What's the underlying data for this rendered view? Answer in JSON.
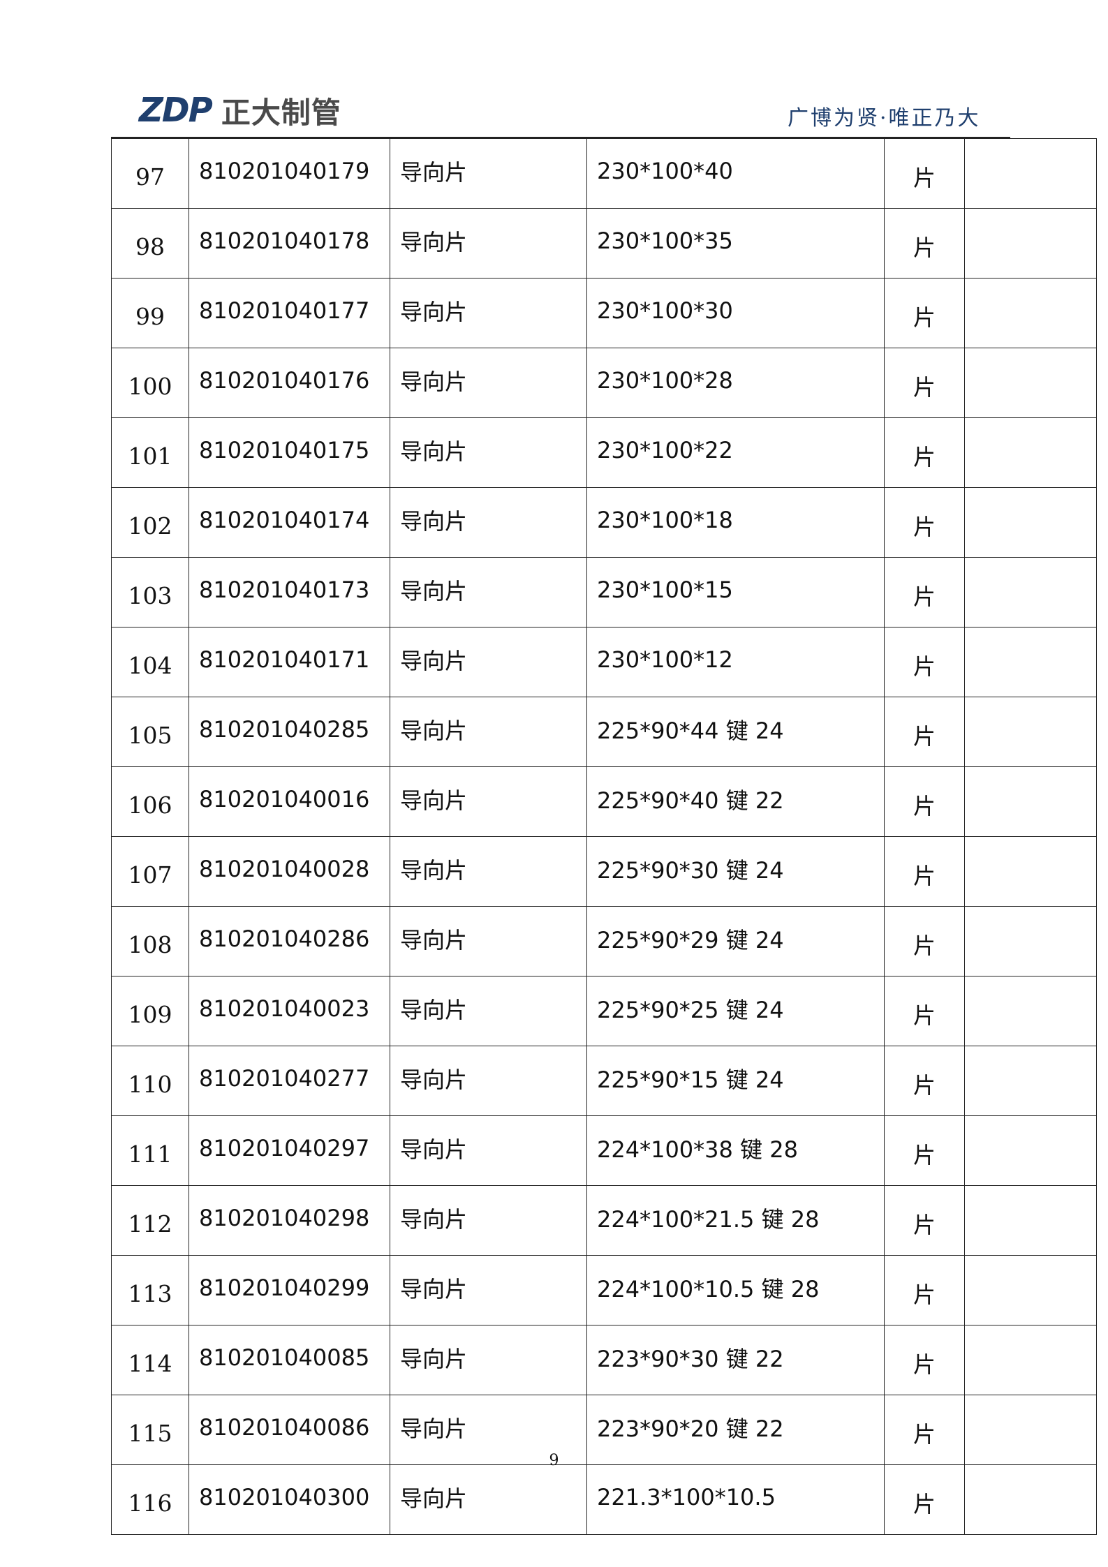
{
  "header": {
    "logo_mark": "ZDP",
    "logo_text": "正大制管",
    "slogan": "广博为贤·唯正乃大",
    "brand_color": "#1f3f6e"
  },
  "rows": [
    {
      "no": "97",
      "code": "810201040179",
      "name": "导向片",
      "spec": "230*100*40",
      "unit": "片",
      "note": ""
    },
    {
      "no": "98",
      "code": "810201040178",
      "name": "导向片",
      "spec": "230*100*35",
      "unit": "片",
      "note": ""
    },
    {
      "no": "99",
      "code": "810201040177",
      "name": "导向片",
      "spec": "230*100*30",
      "unit": "片",
      "note": ""
    },
    {
      "no": "100",
      "code": "810201040176",
      "name": "导向片",
      "spec": "230*100*28",
      "unit": "片",
      "note": ""
    },
    {
      "no": "101",
      "code": "810201040175",
      "name": "导向片",
      "spec": "230*100*22",
      "unit": "片",
      "note": ""
    },
    {
      "no": "102",
      "code": "810201040174",
      "name": "导向片",
      "spec": "230*100*18",
      "unit": "片",
      "note": ""
    },
    {
      "no": "103",
      "code": "810201040173",
      "name": "导向片",
      "spec": "230*100*15",
      "unit": "片",
      "note": ""
    },
    {
      "no": "104",
      "code": "810201040171",
      "name": "导向片",
      "spec": "230*100*12",
      "unit": "片",
      "note": ""
    },
    {
      "no": "105",
      "code": "810201040285",
      "name": "导向片",
      "spec": "225*90*44 键 24",
      "unit": "片",
      "note": ""
    },
    {
      "no": "106",
      "code": "810201040016",
      "name": "导向片",
      "spec": "225*90*40 键 22",
      "unit": "片",
      "note": ""
    },
    {
      "no": "107",
      "code": "810201040028",
      "name": "导向片",
      "spec": "225*90*30 键 24",
      "unit": "片",
      "note": ""
    },
    {
      "no": "108",
      "code": "810201040286",
      "name": "导向片",
      "spec": "225*90*29 键 24",
      "unit": "片",
      "note": ""
    },
    {
      "no": "109",
      "code": "810201040023",
      "name": "导向片",
      "spec": "225*90*25 键 24",
      "unit": "片",
      "note": ""
    },
    {
      "no": "110",
      "code": "810201040277",
      "name": "导向片",
      "spec": "225*90*15 键 24",
      "unit": "片",
      "note": ""
    },
    {
      "no": "111",
      "code": "810201040297",
      "name": "导向片",
      "spec": "224*100*38 键 28",
      "unit": "片",
      "note": ""
    },
    {
      "no": "112",
      "code": "810201040298",
      "name": "导向片",
      "spec": "224*100*21.5 键 28",
      "unit": "片",
      "note": ""
    },
    {
      "no": "113",
      "code": "810201040299",
      "name": "导向片",
      "spec": "224*100*10.5 键 28",
      "unit": "片",
      "note": ""
    },
    {
      "no": "114",
      "code": "810201040085",
      "name": "导向片",
      "spec": "223*90*30 键 22",
      "unit": "片",
      "note": ""
    },
    {
      "no": "115",
      "code": "810201040086",
      "name": "导向片",
      "spec": "223*90*20 键 22",
      "unit": "片",
      "note": ""
    },
    {
      "no": "116",
      "code": "810201040300",
      "name": "导向片",
      "spec": "221.3*100*10.5",
      "unit": "片",
      "note": ""
    }
  ],
  "footer": {
    "page_number": "9"
  }
}
